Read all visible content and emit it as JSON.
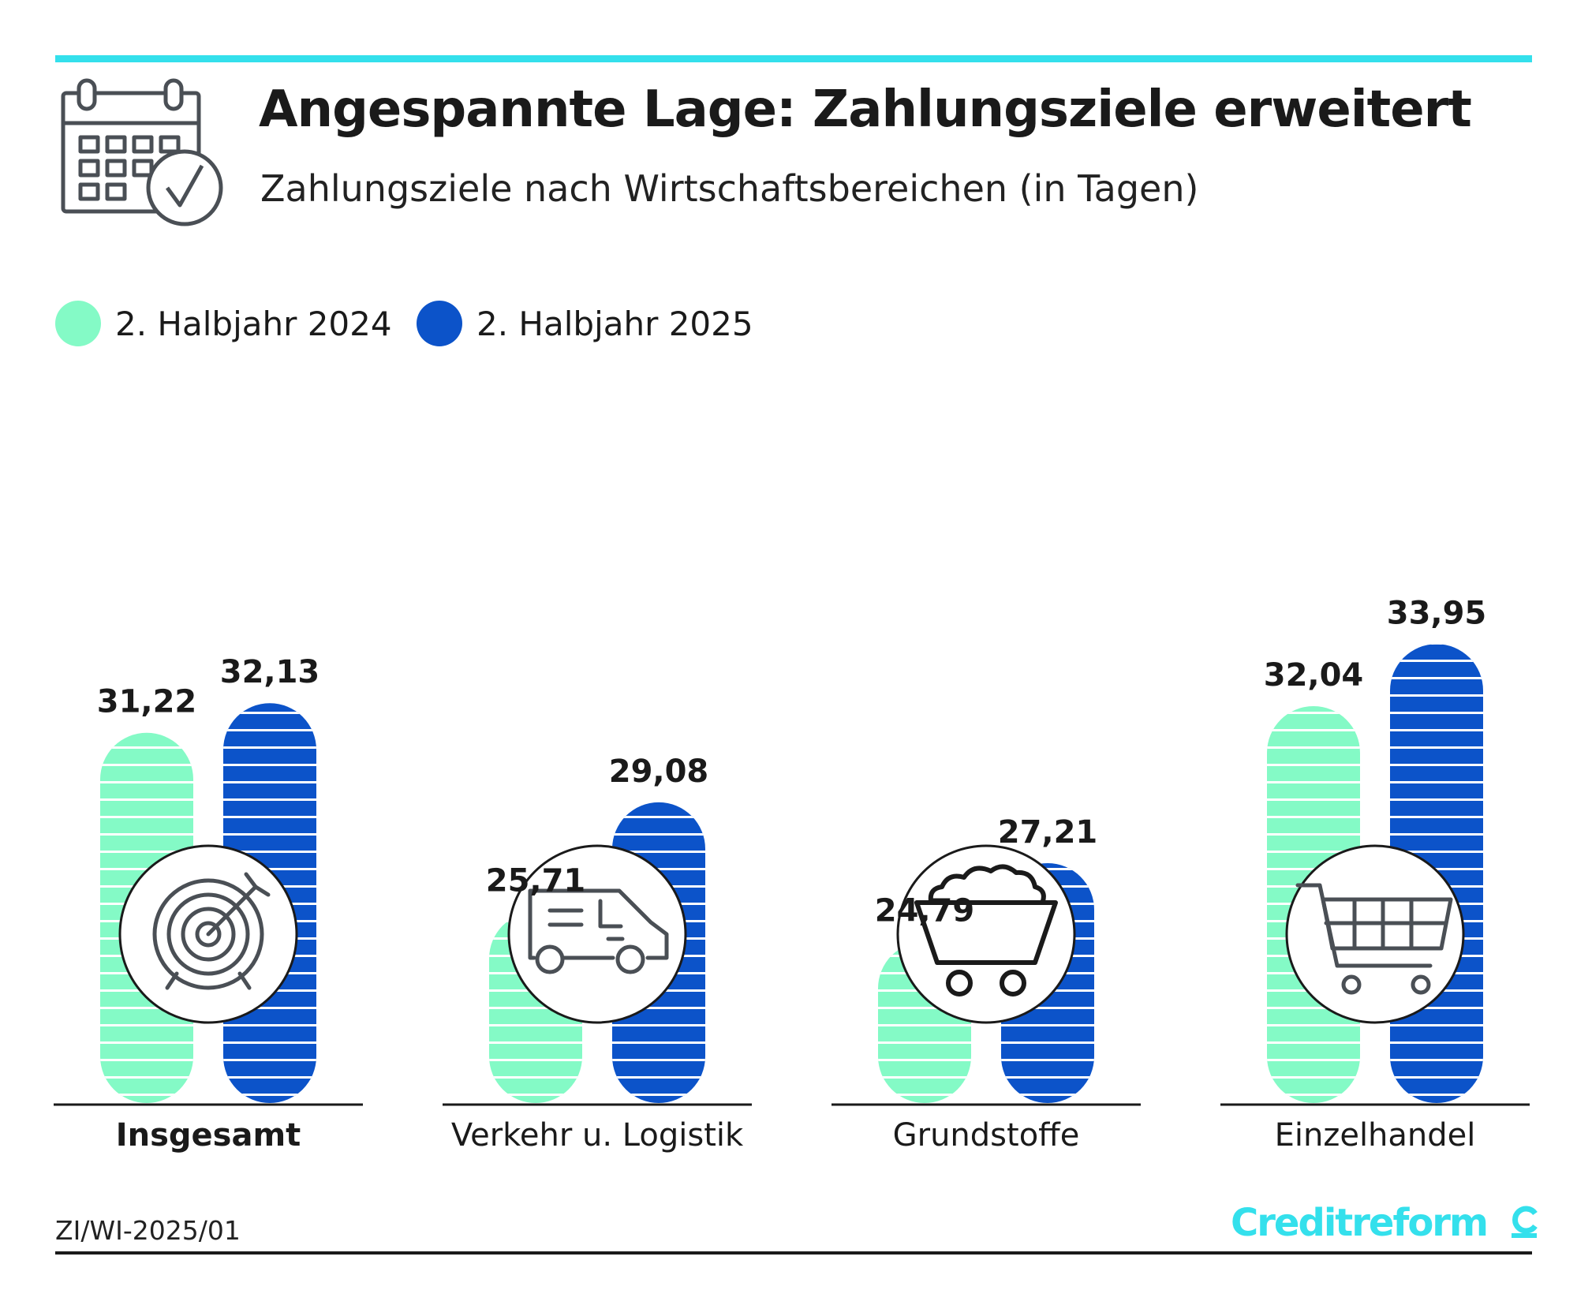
{
  "header": {
    "title": "Angespannte Lage: Zahlungsziele erweitert",
    "subtitle": "Zahlungsziele nach Wirtschaftsbereichen (in Tagen)"
  },
  "legend": [
    {
      "label": "2. Halbjahr 2024",
      "color": "#84fac6"
    },
    {
      "label": "2. Halbjahr 2025",
      "color": "#0c53c9"
    }
  ],
  "footer": {
    "code": "ZI/WI-2025/01",
    "logo_text": "Creditreform",
    "logo_color": "#34e0ec"
  },
  "chart_data": {
    "type": "bar",
    "categories": [
      "Insgesamt",
      "Verkehr u. Logistik",
      "Grundstoffe",
      "Einzelhandel"
    ],
    "category_icons": [
      "target-icon",
      "van-icon",
      "mine-cart-icon",
      "shopping-cart-icon"
    ],
    "series": [
      {
        "name": "2. Halbjahr 2024",
        "color": "#84fac6",
        "values": [
          31.22,
          25.71,
          24.79,
          32.04
        ],
        "labels": [
          "31,22",
          "25,71",
          "24,79",
          "32,04"
        ]
      },
      {
        "name": "2. Halbjahr 2025",
        "color": "#0c53c9",
        "values": [
          32.13,
          29.08,
          27.21,
          33.95
        ],
        "labels": [
          "32,13",
          "29,08",
          "27,21",
          "33,95"
        ]
      }
    ],
    "ylim": [
      0,
      34
    ],
    "grid": false,
    "legend_position": "top-left"
  }
}
